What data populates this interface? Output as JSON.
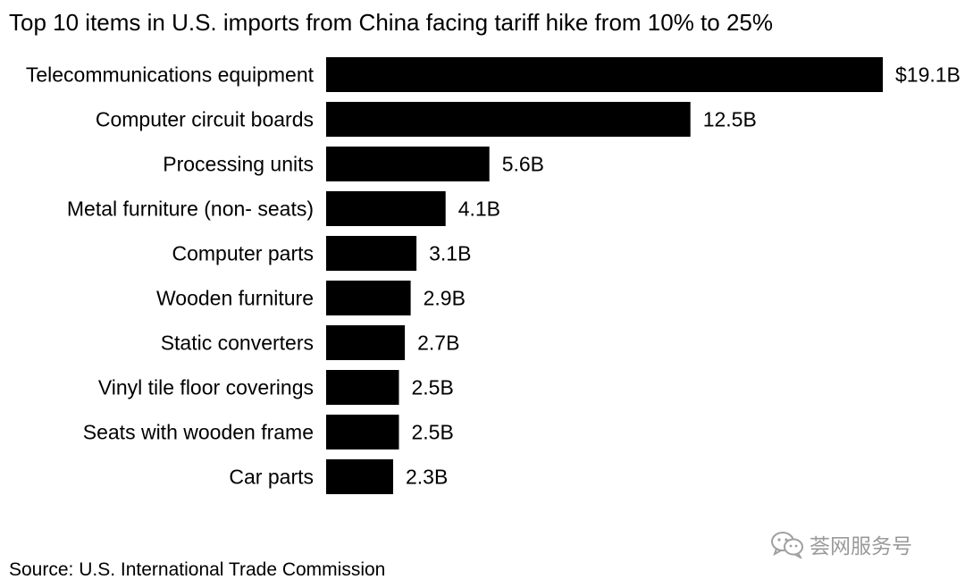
{
  "chart_data": {
    "type": "bar",
    "orientation": "horizontal",
    "title": "Top 10 items in U.S. imports from China facing tariff hike from 10% to 25%",
    "categories": [
      "Telecommunications equipment",
      "Computer circuit boards",
      "Processing units",
      "Metal furniture (non- seats)",
      "Computer parts",
      "Wooden furniture",
      "Static converters",
      "Vinyl tile floor coverings",
      "Seats with wooden frame",
      "Car parts"
    ],
    "values": [
      19.1,
      12.5,
      5.6,
      4.1,
      3.1,
      2.9,
      2.7,
      2.5,
      2.5,
      2.3
    ],
    "value_labels": [
      "$19.1B",
      "12.5B",
      "5.6B",
      "4.1B",
      "3.1B",
      "2.9B",
      "2.7B",
      "2.5B",
      "2.5B",
      "2.3B"
    ],
    "xlim": [
      0,
      19.1
    ],
    "xlabel": "",
    "ylabel": "",
    "grid": false,
    "bar_color": "#000000"
  },
  "source": "Source: U.S. International Trade Commission",
  "watermark": {
    "icon": "wechat-icon",
    "text": "荟网服务号",
    "color": "#9a9a9a"
  }
}
